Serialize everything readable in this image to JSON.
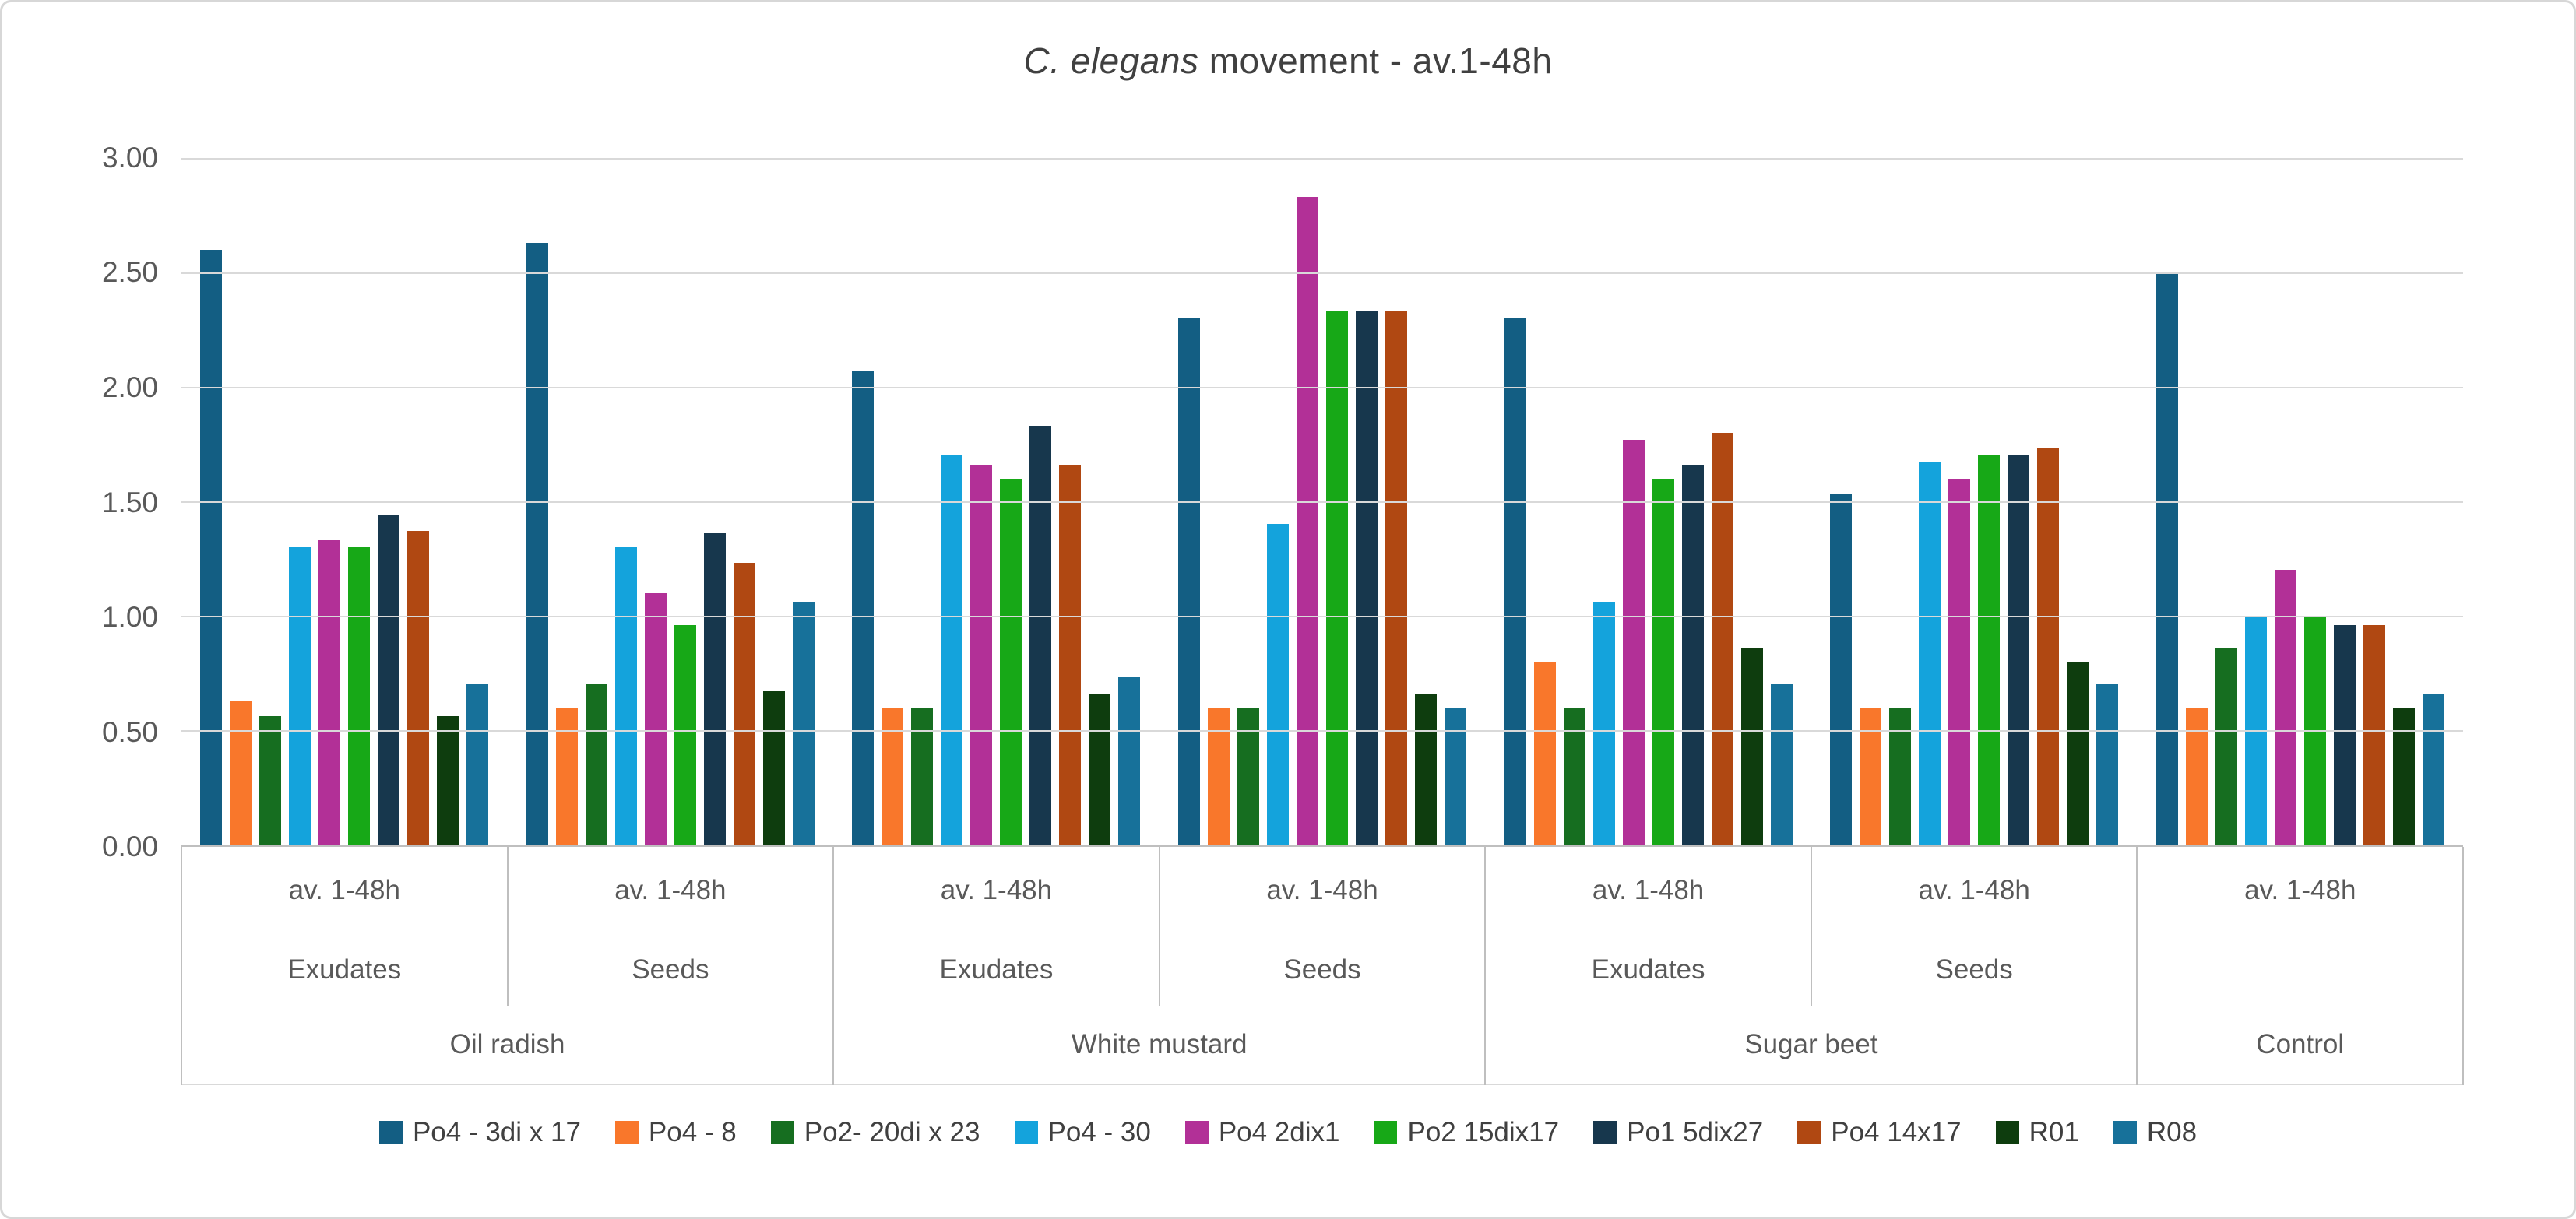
{
  "title": {
    "italic": "C. elegans",
    "rest": " movement - av.1-48h"
  },
  "colors": {
    "text_axis": "#595959",
    "text_title": "#404040",
    "gridline": "#d9d9d9",
    "axis_line": "#bfbfbf",
    "figure_border": "#d7d7d7",
    "background": "#ffffff"
  },
  "chart_data": {
    "type": "bar",
    "title": "C. elegans movement - av.1-48h",
    "xlabel": "",
    "ylabel": "",
    "ylim": [
      0,
      3
    ],
    "grid": true,
    "legend_position": "bottom",
    "ytick_labels": [
      "0.00",
      "0.50",
      "1.00",
      "1.50",
      "2.00",
      "2.50",
      "3.00"
    ],
    "axis_tiers": {
      "tier1": [
        "av. 1-48h",
        "av. 1-48h",
        "av. 1-48h",
        "av. 1-48h",
        "av. 1-48h",
        "av. 1-48h",
        "av. 1-48h"
      ],
      "tier2": [
        "Exudates",
        "Seeds",
        "Exudates",
        "Seeds",
        "Exudates",
        "Seeds",
        ""
      ],
      "tier3": [
        {
          "label": "Oil radish",
          "span": 2
        },
        {
          "label": "White mustard",
          "span": 2
        },
        {
          "label": "Sugar beet",
          "span": 2
        },
        {
          "label": "Control",
          "span": 1
        }
      ],
      "separators_full_at": [
        0,
        2,
        4,
        6,
        7
      ],
      "separators_short_at": [
        1,
        3,
        5
      ]
    },
    "series": [
      {
        "name": "Po4 - 3di x 17",
        "color": "#135e83",
        "values": [
          2.6,
          2.63,
          2.07,
          2.3,
          2.3,
          1.53,
          2.5
        ]
      },
      {
        "name": "Po4 - 8",
        "color": "#f9772b",
        "values": [
          0.63,
          0.6,
          0.6,
          0.6,
          0.8,
          0.6,
          0.6
        ]
      },
      {
        "name": "Po2-  20di x 23",
        "color": "#166e20",
        "values": [
          0.56,
          0.7,
          0.6,
          0.6,
          0.6,
          0.6,
          0.86
        ]
      },
      {
        "name": "Po4 - 30",
        "color": "#14a3dc",
        "values": [
          1.3,
          1.3,
          1.7,
          1.4,
          1.06,
          1.67,
          1.0
        ]
      },
      {
        "name": "Po4 2dix1",
        "color": "#b23097",
        "values": [
          1.33,
          1.1,
          1.66,
          2.83,
          1.77,
          1.6,
          1.2
        ]
      },
      {
        "name": "Po2 15dix17",
        "color": "#17a817",
        "values": [
          1.3,
          0.96,
          1.6,
          2.33,
          1.6,
          1.7,
          1.0
        ]
      },
      {
        "name": "Po1 5dix27",
        "color": "#17374d",
        "values": [
          1.44,
          1.36,
          1.83,
          2.33,
          1.66,
          1.7,
          0.96
        ]
      },
      {
        "name": "Po4 14x17",
        "color": "#b04812",
        "values": [
          1.37,
          1.23,
          1.66,
          2.33,
          1.8,
          1.73,
          0.96
        ]
      },
      {
        "name": "R01",
        "color": "#0e3d0e",
        "values": [
          0.56,
          0.67,
          0.66,
          0.66,
          0.86,
          0.8,
          0.6
        ]
      },
      {
        "name": "R08",
        "color": "#17719a",
        "values": [
          0.7,
          1.06,
          0.73,
          0.6,
          0.7,
          0.7,
          0.66
        ]
      }
    ]
  }
}
